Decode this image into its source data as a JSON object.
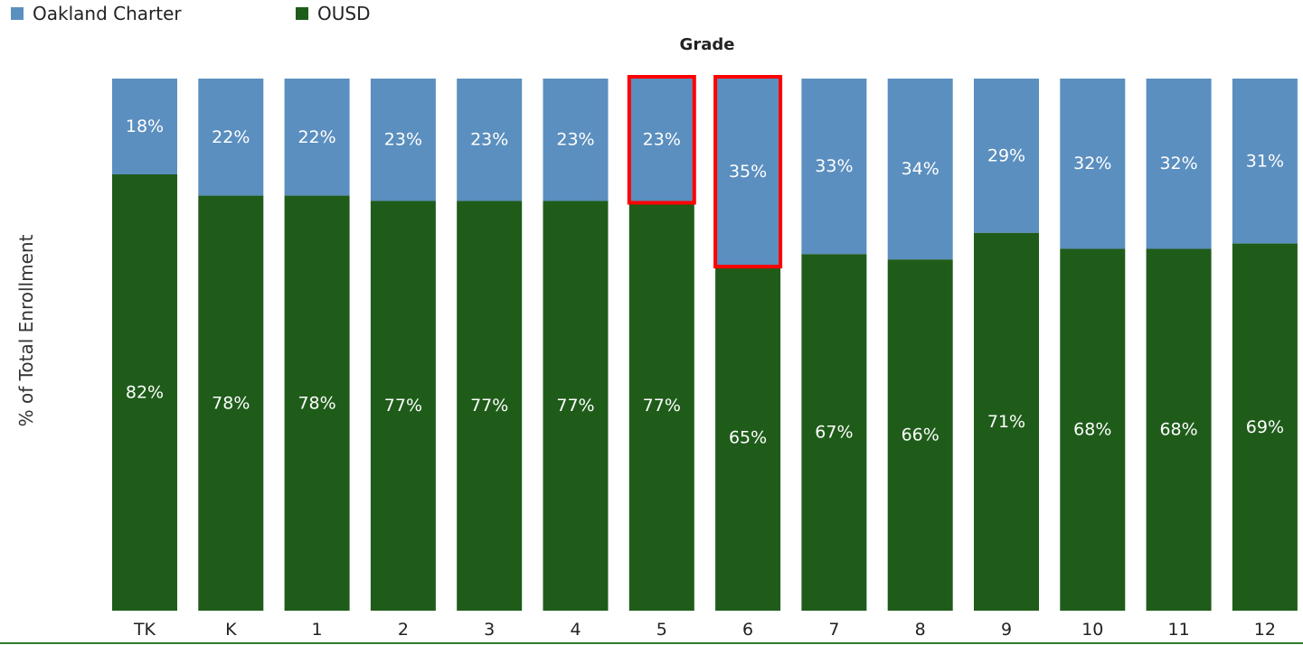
{
  "chart_data": {
    "type": "bar",
    "stacked": true,
    "xlabel": "Grade",
    "ylabel": "% of Total Enrollment",
    "ylim": [
      0,
      100
    ],
    "categories": [
      "TK",
      "K",
      "1",
      "2",
      "3",
      "4",
      "5",
      "6",
      "7",
      "8",
      "9",
      "10",
      "11",
      "12"
    ],
    "series": [
      {
        "name": "Oakland Charter",
        "color": "#5b8fbf",
        "values": [
          18,
          22,
          22,
          23,
          23,
          23,
          23,
          35,
          33,
          34,
          29,
          32,
          32,
          31
        ],
        "labels": [
          "18%",
          "22%",
          "22%",
          "23%",
          "23%",
          "23%",
          "23%",
          "35%",
          "33%",
          "34%",
          "29%",
          "32%",
          "32%",
          "31%"
        ]
      },
      {
        "name": "OUSD",
        "color": "#1f5c1a",
        "values": [
          82,
          78,
          78,
          77,
          77,
          77,
          77,
          65,
          67,
          66,
          71,
          68,
          68,
          69
        ],
        "labels": [
          "82%",
          "78%",
          "78%",
          "77%",
          "77%",
          "77%",
          "77%",
          "65%",
          "67%",
          "66%",
          "71%",
          "68%",
          "68%",
          "69%"
        ]
      }
    ],
    "legend_position": "top-left",
    "grid": false,
    "highlighted_categories": [
      "5",
      "6"
    ],
    "highlight_color": "#ff0000",
    "baseline_color": "#2e7d32"
  }
}
